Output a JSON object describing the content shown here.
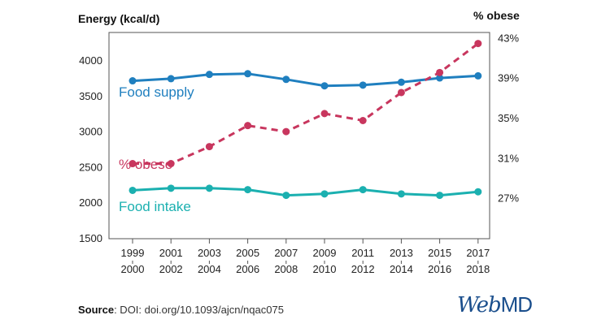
{
  "chart_data": {
    "type": "line",
    "categories": [
      [
        "1999",
        "2000"
      ],
      [
        "2001",
        "2002"
      ],
      [
        "2003",
        "2004"
      ],
      [
        "2005",
        "2006"
      ],
      [
        "2007",
        "2008"
      ],
      [
        "2009",
        "2010"
      ],
      [
        "2011",
        "2012"
      ],
      [
        "2013",
        "2014"
      ],
      [
        "2015",
        "2016"
      ],
      [
        "2017",
        "2018"
      ]
    ],
    "left_axis": {
      "title": "Energy (kcal/d)",
      "range": [
        1500,
        4400
      ],
      "ticks": [
        "4000",
        "3500",
        "3000",
        "2500",
        "2000",
        "1500"
      ],
      "tick_values": [
        4000,
        3500,
        3000,
        2500,
        2000,
        1500
      ]
    },
    "right_axis": {
      "title": "% obese",
      "range": [
        23.0,
        43.6
      ],
      "ticks": [
        "43%",
        "39%",
        "35%",
        "31%",
        "27%"
      ],
      "tick_values": [
        43,
        39,
        35,
        31,
        27
      ]
    },
    "series": [
      {
        "name": "Food supply",
        "axis": "left",
        "style": "solid",
        "color": "#1f7fbf",
        "values": [
          3720,
          3750,
          3810,
          3820,
          3740,
          3650,
          3660,
          3700,
          3760,
          3790
        ]
      },
      {
        "name": "% obese",
        "axis": "right",
        "style": "dashed",
        "color": "#c8365e",
        "values": [
          30.5,
          30.5,
          32.2,
          34.3,
          33.7,
          35.5,
          34.8,
          37.6,
          39.6,
          42.5
        ]
      },
      {
        "name": "Food intake",
        "axis": "left",
        "style": "solid",
        "color": "#1bb0b0",
        "values": [
          2180,
          2210,
          2210,
          2190,
          2110,
          2130,
          2190,
          2130,
          2110,
          2160
        ]
      }
    ]
  },
  "footer": {
    "source_label": "Source",
    "source_text": ": DOI: doi.org/10.1093/ajcn/nqac075",
    "logo_web": "Web",
    "logo_md": "MD"
  }
}
